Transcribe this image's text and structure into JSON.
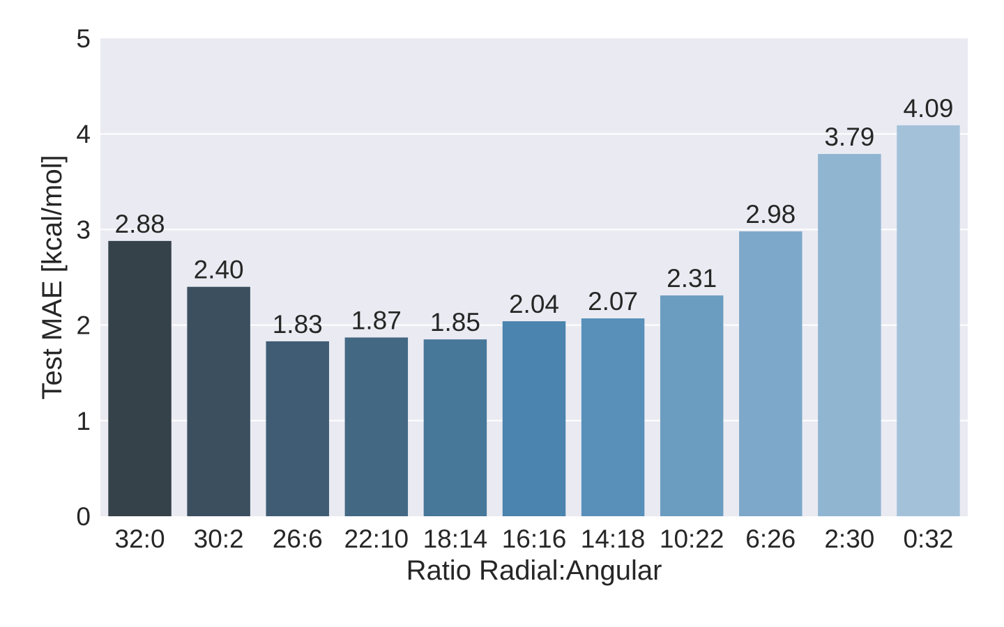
{
  "chart_data": {
    "type": "bar",
    "categories": [
      "32:0",
      "30:2",
      "26:6",
      "22:10",
      "18:14",
      "16:16",
      "14:18",
      "10:22",
      "6:26",
      "2:30",
      "0:32"
    ],
    "values": [
      2.88,
      2.4,
      1.83,
      1.87,
      1.85,
      2.04,
      2.07,
      2.31,
      2.98,
      3.79,
      4.09
    ],
    "value_labels": [
      "2.88",
      "2.40",
      "1.83",
      "1.87",
      "1.85",
      "2.04",
      "2.07",
      "2.31",
      "2.98",
      "3.79",
      "4.09"
    ],
    "title": "",
    "xlabel": "Ratio Radial:Angular",
    "ylabel": "Test MAE [kcal/mol]",
    "ylim": [
      0,
      5
    ],
    "yticks": [
      0,
      1,
      2,
      3,
      4,
      5
    ],
    "ytick_labels": [
      "0",
      "1",
      "2",
      "3",
      "4",
      "5"
    ],
    "grid": "horizontal",
    "legend": "none",
    "colors": [
      "#35424a",
      "#3b4f5f",
      "#3f5c74",
      "#436884",
      "#477799",
      "#4b84ae",
      "#5890ba",
      "#6b9dc0",
      "#7da8c9",
      "#90b5d1",
      "#a3c2da"
    ],
    "background": "#eaeaf2"
  }
}
